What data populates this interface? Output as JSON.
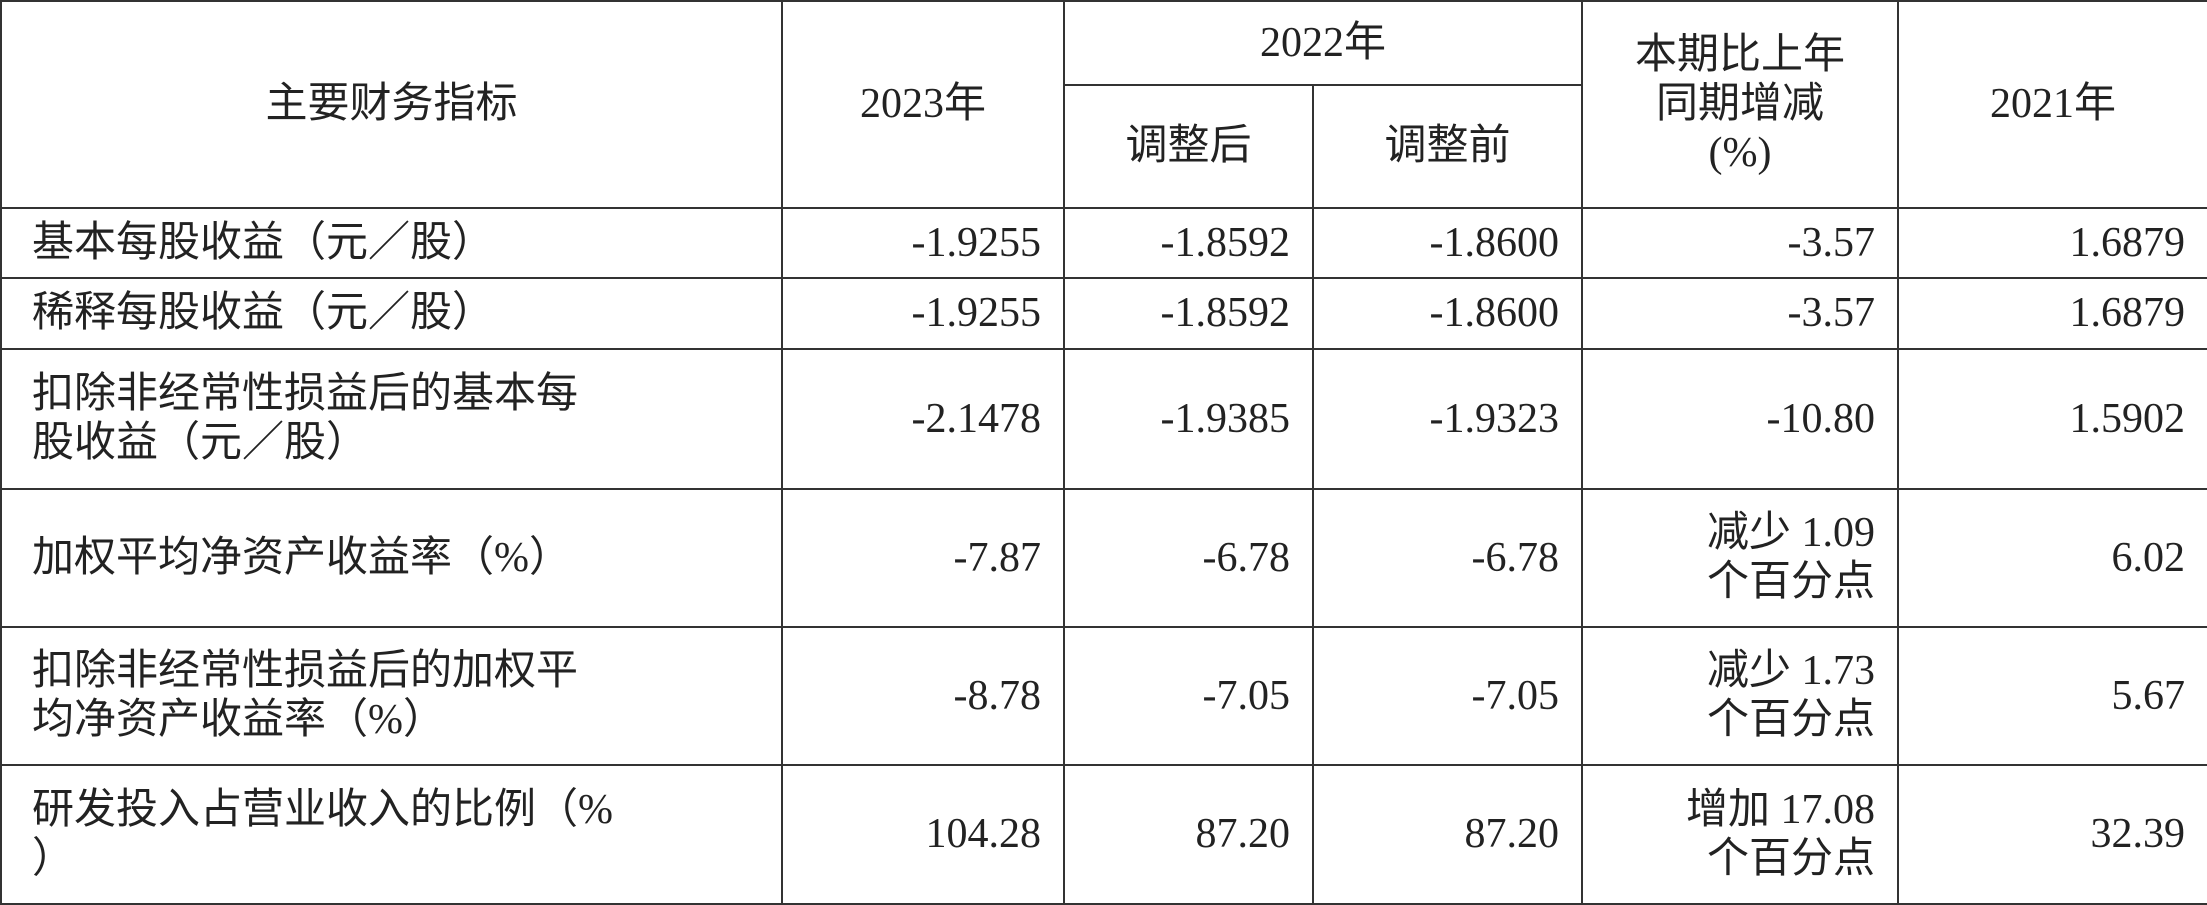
{
  "header": {
    "indicator": "主要财务指标",
    "y2023": "2023年",
    "y2022": "2022年",
    "adjusted": "调整后",
    "before": "调整前",
    "change": [
      "本期比上年",
      "同期增减",
      "(%)"
    ],
    "y2021": "2021年"
  },
  "rows": [
    [
      [
        "基本每股收益（元／股）"
      ],
      [
        "-1.9255"
      ],
      [
        "-1.8592"
      ],
      [
        "-1.8600"
      ],
      [
        "-3.57"
      ],
      [
        "1.6879"
      ]
    ],
    [
      [
        "稀释每股收益（元／股）"
      ],
      [
        "-1.9255"
      ],
      [
        "-1.8592"
      ],
      [
        "-1.8600"
      ],
      [
        "-3.57"
      ],
      [
        "1.6879"
      ]
    ],
    [
      [
        "扣除非经常性损益后的基本每",
        "股收益（元／股）"
      ],
      [
        "-2.1478"
      ],
      [
        "-1.9385"
      ],
      [
        "-1.9323"
      ],
      [
        "-10.80"
      ],
      [
        "1.5902"
      ]
    ],
    [
      [
        "加权平均净资产收益率（%）"
      ],
      [
        "-7.87"
      ],
      [
        "-6.78"
      ],
      [
        "-6.78"
      ],
      [
        "减少 1.09",
        "个百分点"
      ],
      [
        "6.02"
      ]
    ],
    [
      [
        "扣除非经常性损益后的加权平",
        "均净资产收益率（%）"
      ],
      [
        "-8.78"
      ],
      [
        "-7.05"
      ],
      [
        "-7.05"
      ],
      [
        "减少 1.73",
        "个百分点"
      ],
      [
        "5.67"
      ]
    ],
    [
      [
        "研发投入占营业收入的比例（%",
        "）"
      ],
      [
        "104.28"
      ],
      [
        "87.20"
      ],
      [
        "87.20"
      ],
      [
        "增加 17.08",
        "个百分点"
      ],
      [
        "32.39"
      ]
    ]
  ]
}
